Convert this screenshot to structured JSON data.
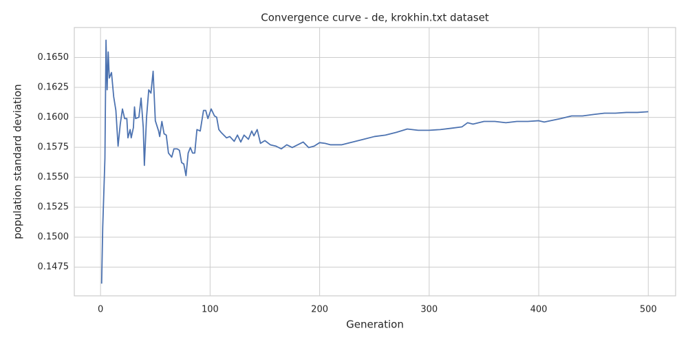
{
  "chart_data": {
    "type": "line",
    "title": "Convergence curve - de, krokhin.txt dataset",
    "xlabel": "Generation",
    "ylabel": "population standard deviation",
    "xlim": [
      -23.95,
      524.95
    ],
    "ylim": [
      0.1451,
      0.1675
    ],
    "xticks": [
      0,
      100,
      200,
      300,
      400,
      500
    ],
    "yticks": [
      0.1475,
      {
        "value": 0.15,
        "label": "0.1500"
      },
      0.1525,
      {
        "value": 0.155,
        "label": "0.1550"
      },
      0.1575,
      {
        "value": 0.16,
        "label": "0.1600"
      },
      0.1625,
      {
        "value": 0.165,
        "label": "0.1650"
      }
    ],
    "grid": true,
    "series": [
      {
        "color": "#4c72b0",
        "x": [
          1,
          2,
          4,
          5,
          6,
          7,
          8,
          10,
          12,
          14,
          16,
          18,
          20,
          22,
          24,
          25,
          27,
          28,
          30,
          31,
          32,
          35,
          37,
          39,
          40,
          42,
          44,
          46,
          48,
          50,
          53,
          54,
          56,
          58,
          60,
          62,
          65,
          67,
          70,
          72,
          74,
          76,
          78,
          80,
          82,
          84,
          86,
          88,
          91,
          94,
          96,
          98,
          101,
          104,
          106,
          108,
          110,
          115,
          118,
          122,
          125,
          128,
          131,
          135,
          138,
          140,
          143,
          146,
          150,
          155,
          160,
          165,
          170,
          175,
          180,
          185,
          190,
          195,
          200,
          205,
          210,
          220,
          230,
          240,
          250,
          260,
          270,
          280,
          290,
          300,
          310,
          320,
          330,
          335,
          340,
          350,
          360,
          370,
          380,
          390,
          400,
          405,
          420,
          430,
          440,
          450,
          460,
          470,
          480,
          490,
          500
        ],
        "values": [
          0.14612,
          0.15083,
          0.15657,
          0.16644,
          0.1623,
          0.16546,
          0.16328,
          0.16374,
          0.16173,
          0.16058,
          0.1576,
          0.15943,
          0.1607,
          0.1599,
          0.1599,
          0.15829,
          0.15898,
          0.15829,
          0.15915,
          0.16087,
          0.1599,
          0.16001,
          0.16161,
          0.15915,
          0.15599,
          0.16001,
          0.1623,
          0.16202,
          0.16385,
          0.15972,
          0.15886,
          0.1584,
          0.15966,
          0.15863,
          0.15852,
          0.15702,
          0.15668,
          0.15737,
          0.15737,
          0.15725,
          0.15622,
          0.15611,
          0.15513,
          0.15702,
          0.15748,
          0.15702,
          0.15702,
          0.15898,
          0.15886,
          0.16058,
          0.16058,
          0.1599,
          0.1607,
          0.16012,
          0.16001,
          0.15898,
          0.15875,
          0.15829,
          0.1584,
          0.158,
          0.15852,
          0.15794,
          0.15852,
          0.15817,
          0.15886,
          0.15846,
          0.15898,
          0.15783,
          0.15806,
          0.15771,
          0.1576,
          0.15737,
          0.15771,
          0.15748,
          0.15771,
          0.15794,
          0.15748,
          0.1576,
          0.15789,
          0.15783,
          0.15771,
          0.15771,
          0.15794,
          0.15817,
          0.1584,
          0.15852,
          0.15875,
          0.15903,
          0.15892,
          0.15892,
          0.15898,
          0.15909,
          0.15921,
          0.15955,
          0.15944,
          0.15966,
          0.15966,
          0.15955,
          0.15966,
          0.15966,
          0.15972,
          0.15961,
          0.1599,
          0.16012,
          0.16012,
          0.16024,
          0.16035,
          0.16035,
          0.16041,
          0.16041,
          0.16047
        ]
      }
    ]
  }
}
